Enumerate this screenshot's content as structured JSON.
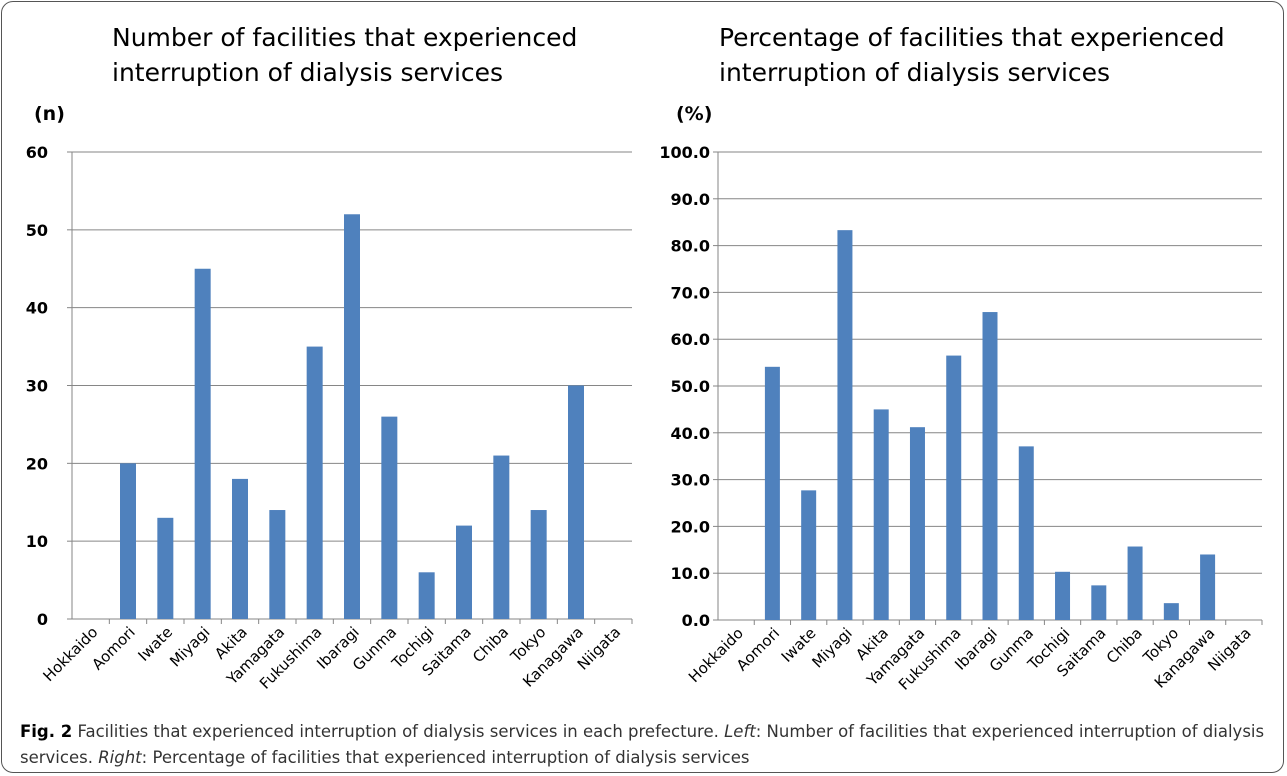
{
  "colors": {
    "bar": "#4F81BD",
    "grid": "#868686",
    "axis": "#868686"
  },
  "chart_data": [
    {
      "type": "bar",
      "title": "Number of facilities that experienced interruption of dialysis services",
      "title_lines": [
        "Number of facilities that experienced",
        "interruption of dialysis services"
      ],
      "unit_label": "(n)",
      "categories": [
        "Hokkaido",
        "Aomori",
        "Iwate",
        "Miyagi",
        "Akita",
        "Yamagata",
        "Fukushima",
        "Ibaragi",
        "Gunma",
        "Tochigi",
        "Saitama",
        "Chiba",
        "Tokyo",
        "Kanagawa",
        "Niigata"
      ],
      "values": [
        0,
        20,
        13,
        45,
        18,
        14,
        35,
        52,
        26,
        6,
        12,
        21,
        14,
        30,
        0
      ],
      "ylim": [
        0,
        60
      ],
      "yticks": [
        0,
        10,
        20,
        30,
        40,
        50,
        60
      ],
      "ytick_labels": [
        "0",
        "10",
        "20",
        "30",
        "40",
        "50",
        "60"
      ],
      "grid": true,
      "legend": "none"
    },
    {
      "type": "bar",
      "title": "Percentage of facilities that experienced interruption of dialysis services",
      "title_lines": [
        "Percentage of facilities that experienced",
        "interruption of dialysis services"
      ],
      "unit_label": "(%)",
      "categories": [
        "Hokkaido",
        "Aomori",
        "Iwate",
        "Miyagi",
        "Akita",
        "Yamagata",
        "Fukushima",
        "Ibaragi",
        "Gunma",
        "Tochigi",
        "Saitama",
        "Chiba",
        "Tokyo",
        "Kanagawa",
        "Niigata"
      ],
      "values": [
        0,
        54.1,
        27.7,
        83.3,
        45.0,
        41.2,
        56.5,
        65.8,
        37.1,
        10.3,
        7.4,
        15.7,
        3.6,
        14.0,
        0
      ],
      "ylim": [
        0,
        100
      ],
      "yticks": [
        0,
        10,
        20,
        30,
        40,
        50,
        60,
        70,
        80,
        90,
        100
      ],
      "ytick_labels": [
        "0.0",
        "10.0",
        "20.0",
        "30.0",
        "40.0",
        "50.0",
        "60.0",
        "70.0",
        "80.0",
        "90.0",
        "100.0"
      ],
      "grid": true,
      "legend": "none"
    }
  ],
  "caption": {
    "fig_label": "Fig. 2",
    "main": " Facilities that experienced interruption of dialysis services in each prefecture. ",
    "left_label": "Left",
    "left_text": ": Number of facilities that experienced interruption of dialysis services. ",
    "right_label": "Right",
    "right_text": ": Percentage of facilities that experienced interruption of dialysis services"
  }
}
